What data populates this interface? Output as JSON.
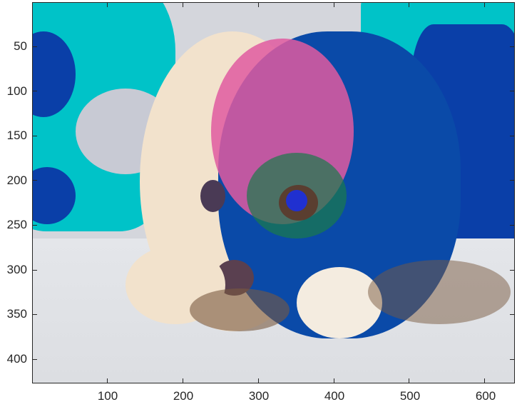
{
  "image": {
    "description_colors": [
      "#00c3c8",
      "#0a3fa8",
      "#e05aa0",
      "#f2e2cc",
      "#1a7a4a",
      "#7a5a40",
      "#d4d6dc"
    ]
  },
  "axes": {
    "xticks": [
      "100",
      "200",
      "300",
      "400",
      "500",
      "600"
    ],
    "yticks": [
      "50",
      "100",
      "150",
      "200",
      "250",
      "300",
      "350",
      "400"
    ],
    "xlim": [
      0.5,
      640.5
    ],
    "ylim": [
      0.5,
      427.5
    ],
    "y_reversed": true
  }
}
